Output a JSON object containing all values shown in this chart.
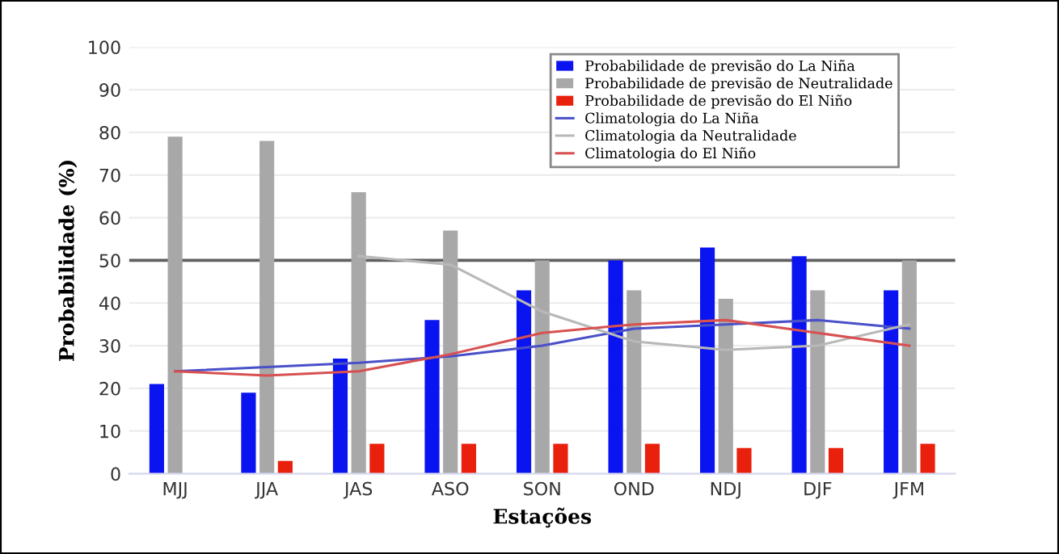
{
  "chart_data": {
    "type": "bar",
    "xlabel": "Estações",
    "ylabel": "Probabilidade (%)",
    "categories": [
      "MJJ",
      "JJA",
      "JAS",
      "ASO",
      "SON",
      "OND",
      "NDJ",
      "DJF",
      "JFM"
    ],
    "series": [
      {
        "name": "Probabilidade de previsão do La Niña",
        "color": "#0a14f0",
        "values": [
          21,
          19,
          27,
          36,
          43,
          50,
          53,
          51,
          43
        ]
      },
      {
        "name": "Probabilidade de previsão de Neutralidade",
        "color": "#a8a8a8",
        "values": [
          79,
          78,
          66,
          57,
          50,
          43,
          41,
          43,
          50
        ]
      },
      {
        "name": "Probabilidade de previsão do El Niño",
        "color": "#e8200c",
        "values": [
          0,
          3,
          7,
          7,
          7,
          7,
          6,
          6,
          7
        ]
      },
      {
        "name": "Climatologia do La Niña",
        "type": "line",
        "color": "#4a50c8",
        "values": [
          24,
          25,
          26,
          27.5,
          30,
          34,
          35,
          36,
          34
        ]
      },
      {
        "name": "Climatologia da Neutralidade",
        "type": "line",
        "color": "#b8b8b8",
        "values": [
          null,
          null,
          51,
          49,
          38,
          31,
          29,
          30,
          35
        ]
      },
      {
        "name": "Climatologia do El Niño",
        "type": "line",
        "color": "#d85050",
        "values": [
          24,
          23,
          24,
          28,
          33,
          35,
          36,
          33,
          30
        ]
      }
    ],
    "ylim": [
      0,
      100
    ],
    "yticks": [
      0,
      10,
      20,
      30,
      40,
      50,
      60,
      70,
      80,
      90,
      100
    ],
    "ref_lines": [
      {
        "axis": "y",
        "value": 50,
        "color": "#606060"
      }
    ],
    "grid": "y",
    "legend": "top right"
  }
}
